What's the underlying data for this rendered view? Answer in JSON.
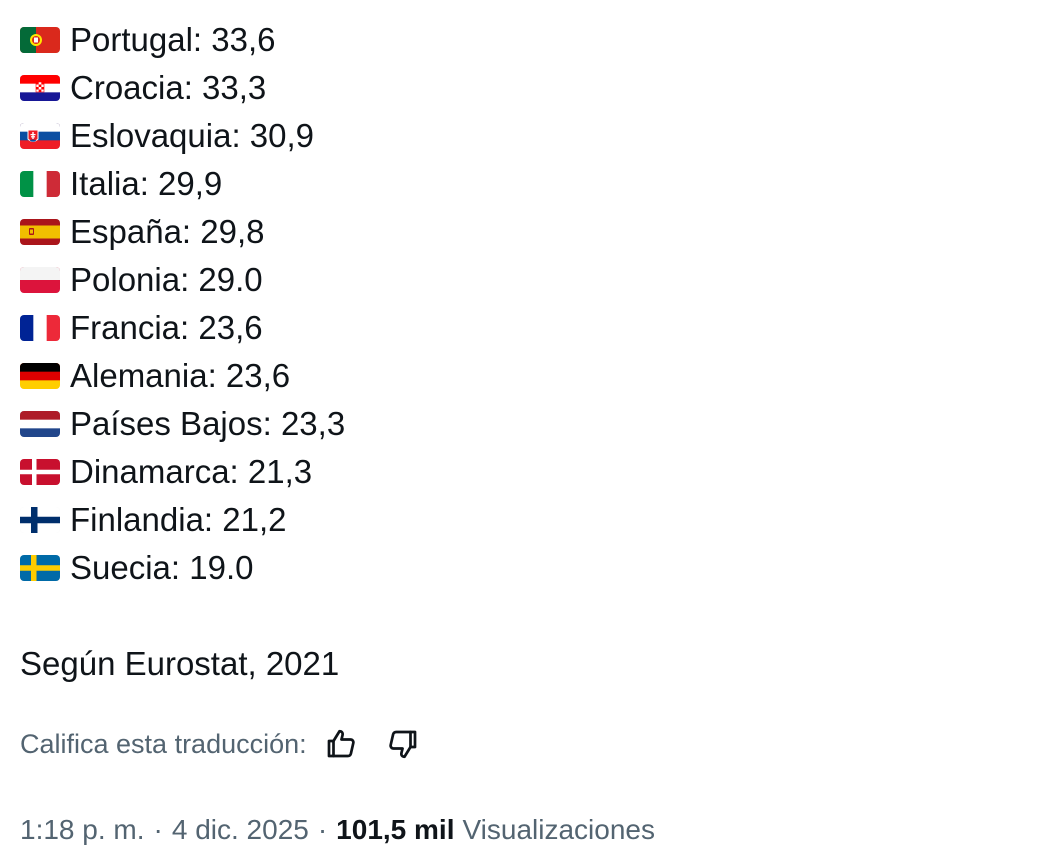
{
  "countries": [
    {
      "name": "Portugal",
      "value": "33,6",
      "label": "Portugal: 33,6",
      "flag": "portugal"
    },
    {
      "name": "Croacia",
      "value": "33,3",
      "label": "Croacia: 33,3",
      "flag": "croatia"
    },
    {
      "name": "Eslovaquia",
      "value": "30,9",
      "label": "Eslovaquia: 30,9",
      "flag": "slovakia"
    },
    {
      "name": "Italia",
      "value": "29,9",
      "label": "Italia: 29,9",
      "flag": "italy"
    },
    {
      "name": "España",
      "value": "29,8",
      "label": "España: 29,8",
      "flag": "spain"
    },
    {
      "name": "Polonia",
      "value": "29.0",
      "label": "Polonia: 29.0",
      "flag": "poland"
    },
    {
      "name": "Francia",
      "value": "23,6",
      "label": "Francia: 23,6",
      "flag": "france"
    },
    {
      "name": "Alemania",
      "value": "23,6",
      "label": "Alemania: 23,6",
      "flag": "germany"
    },
    {
      "name": "Países Bajos",
      "value": "23,3",
      "label": "Países Bajos: 23,3",
      "flag": "netherlands"
    },
    {
      "name": "Dinamarca",
      "value": "21,3",
      "label": "Dinamarca: 21,3",
      "flag": "denmark"
    },
    {
      "name": "Finlandia",
      "value": "21,2",
      "label": "Finlandia: 21,2",
      "flag": "finland"
    },
    {
      "name": "Suecia",
      "value": "19.0",
      "label": "Suecia: 19.0",
      "flag": "sweden"
    }
  ],
  "source": "Según Eurostat, 2021",
  "translation_rating": {
    "prompt": "Califica esta traducción:",
    "up_icon": "thumbs-up-icon",
    "down_icon": "thumbs-down-icon"
  },
  "meta": {
    "time": "1:18 p. m.",
    "separator": "·",
    "date": "4 dic. 2025",
    "views_count": "101,5 mil",
    "views_label": "Visualizaciones"
  },
  "colors": {
    "text": "#0f1419",
    "secondary": "#536471"
  }
}
